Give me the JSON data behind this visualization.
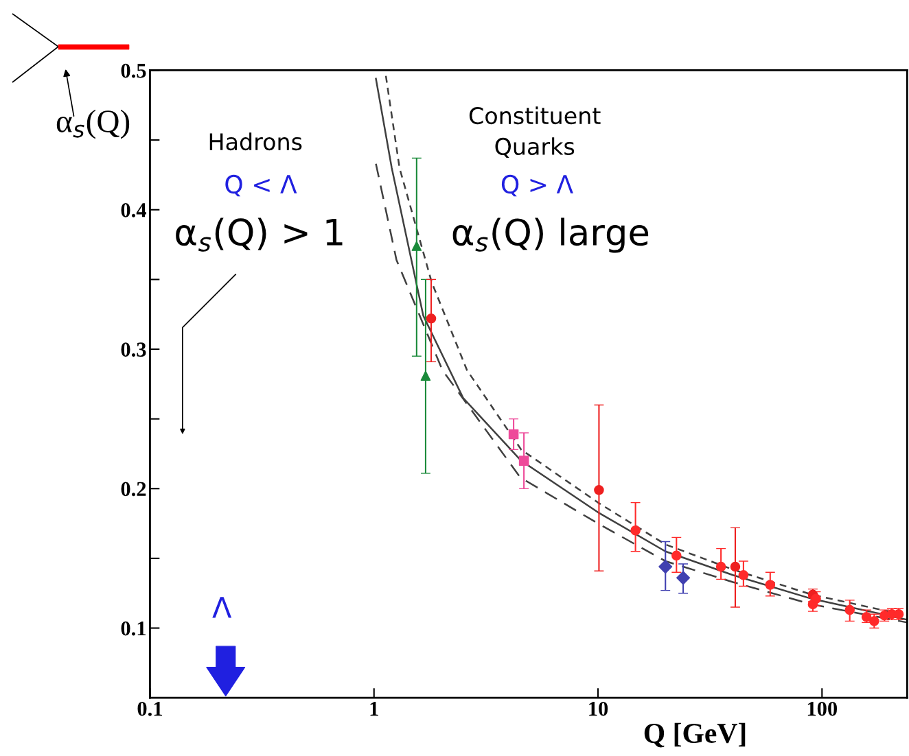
{
  "chart_data": {
    "type": "scatter",
    "xlabel": "Q [GeV]",
    "ylabel": "α$_{s}$(Q)",
    "log": "x",
    "xlim": [
      0.1,
      240
    ],
    "xticks": [
      0.1,
      1,
      10,
      100
    ],
    "ylim": [
      0.05,
      0.5
    ],
    "yticks": [
      0.1,
      {
        "value": 0.15,
        "label": null
      },
      0.2,
      {
        "value": 0.25,
        "label": null
      },
      0.3,
      {
        "value": 0.35,
        "label": null
      },
      0.4,
      {
        "value": 0.45,
        "label": null
      },
      0.5
    ],
    "series": [
      {
        "type": "line",
        "line_style": "solid",
        "color": "#404040",
        "x": [
          1.02,
          1.2,
          1.66,
          2.5,
          4.54,
          10,
          20,
          40,
          90,
          240
        ],
        "values": [
          0.494,
          0.43,
          0.324,
          0.265,
          0.22,
          0.183,
          0.155,
          0.138,
          0.121,
          0.106
        ]
      },
      {
        "type": "line",
        "line_style": "dotted",
        "color": "#404040",
        "x": [
          1.13,
          1.3,
          1.81,
          2.6,
          4.54,
          10,
          20,
          40,
          90,
          240
        ],
        "values": [
          0.496,
          0.43,
          0.348,
          0.285,
          0.228,
          0.19,
          0.16,
          0.142,
          0.124,
          0.109
        ]
      },
      {
        "type": "line",
        "line_style": "dashed",
        "color": "#404040",
        "x": [
          1.02,
          1.26,
          2.02,
          4.5,
          10,
          20,
          40,
          90,
          240
        ],
        "values": [
          0.433,
          0.364,
          0.285,
          0.208,
          0.175,
          0.148,
          0.133,
          0.117,
          0.104
        ]
      },
      {
        "marker": "triangle",
        "color": "#1a8a3a",
        "x": [
          1.55,
          1.7
        ],
        "values": [
          0.374,
          0.281
        ],
        "errors": [
          [
            0.295,
            0.437
          ],
          [
            0.211,
            0.35
          ]
        ]
      },
      {
        "marker": "circle",
        "color": "#ee2020",
        "x": [
          1.8,
          10.1,
          41,
          91
        ],
        "values": [
          0.322,
          0.199,
          0.144,
          0.124
        ],
        "errors": [
          [
            0.291,
            0.35
          ],
          [
            0.141,
            0.26
          ],
          [
            0.115,
            0.172
          ],
          [
            0.119,
            0.128
          ]
        ]
      },
      {
        "marker": "square",
        "color": "#ee4a9a",
        "x": [
          4.2,
          4.67
        ],
        "values": [
          0.239,
          0.22
        ],
        "errors": [
          [
            0.228,
            0.25
          ],
          [
            0.2,
            0.24
          ]
        ]
      },
      {
        "marker": "circle",
        "color": "#ff2a2a",
        "x": [
          14.7,
          22.4,
          35.4,
          44.6,
          58.7,
          91,
          94,
          133,
          158,
          171,
          190,
          205,
          220
        ],
        "values": [
          0.17,
          0.152,
          0.144,
          0.138,
          0.131,
          0.117,
          0.121,
          0.113,
          0.108,
          0.105,
          0.109,
          0.11,
          0.11
        ],
        "errors": [
          [
            0.155,
            0.19
          ],
          [
            0.14,
            0.165
          ],
          [
            0.135,
            0.157
          ],
          [
            0.13,
            0.148
          ],
          [
            0.123,
            0.14
          ],
          [
            0.112,
            0.122
          ],
          [
            0.116,
            0.126
          ],
          [
            0.105,
            0.12
          ],
          [
            0.104,
            0.113
          ],
          [
            0.1,
            0.11
          ],
          [
            0.105,
            0.113
          ],
          [
            0.106,
            0.114
          ],
          [
            0.106,
            0.114
          ]
        ]
      },
      {
        "marker": "diamond",
        "color": "#4040b0",
        "x": [
          20,
          24
        ],
        "values": [
          0.144,
          0.136
        ],
        "errors": [
          [
            0.127,
            0.162
          ],
          [
            0.125,
            0.146
          ]
        ]
      }
    ],
    "annotations": [
      "Hadrons",
      "Q < Λ",
      "α$_{s}$(Q) > 1",
      "Constituent\nQuarks",
      "Q > Λ",
      "α$_{s}$(Q) large",
      "Λ"
    ]
  }
}
